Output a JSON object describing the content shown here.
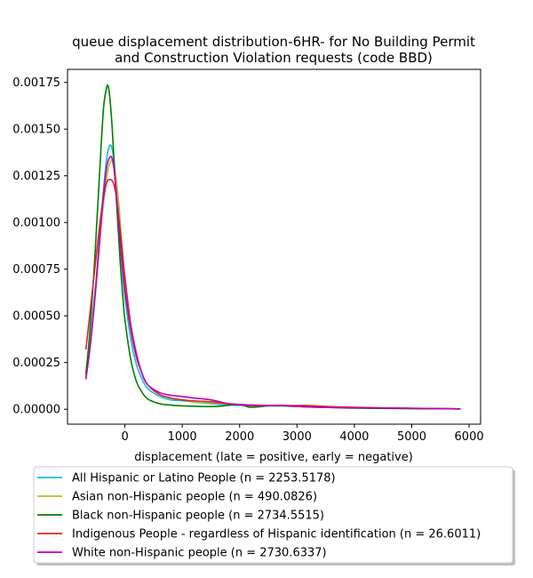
{
  "chart_data": {
    "type": "line",
    "title": "queue displacement distribution-6HR-  for No Building Permit\nand Construction Violation  requests (code BBD)",
    "xlabel": "displacement (late = positive, early = negative)",
    "ylabel": "",
    "xlim": [
      -1000,
      6200
    ],
    "ylim": [
      -8e-05,
      0.00182
    ],
    "xticks": [
      0,
      1000,
      2000,
      3000,
      4000,
      5000,
      6000
    ],
    "xtick_labels": [
      "0",
      "1000",
      "2000",
      "3000",
      "4000",
      "5000",
      "6000"
    ],
    "yticks": [
      0,
      0.00025,
      0.0005,
      0.00075,
      0.001,
      0.00125,
      0.0015,
      0.00175
    ],
    "ytick_labels": [
      "0.00000",
      "0.00025",
      "0.00050",
      "0.00075",
      "0.00100",
      "0.00125",
      "0.00150",
      "0.00175"
    ],
    "grid": false,
    "legend_position": "bottom-outside",
    "series": [
      {
        "name": "All Hispanic or Latino People (n = 2253.5178)",
        "color": "#17becf",
        "x": [
          -680,
          -600,
          -500,
          -400,
          -330,
          -270,
          -220,
          -180,
          -130,
          -60,
          0,
          100,
          200,
          300,
          400,
          600,
          800,
          1000,
          1500,
          2000,
          2500,
          3000,
          3500,
          4000,
          5000,
          5850
        ],
        "y": [
          0.00018,
          0.00038,
          0.0007,
          0.00108,
          0.00131,
          0.00141,
          0.00139,
          0.0013,
          0.0011,
          0.0008,
          0.0006,
          0.00038,
          0.00024,
          0.00016,
          0.00011,
          7e-05,
          5e-05,
          4.5e-05,
          3e-05,
          2e-05,
          1.8e-05,
          1.5e-05,
          1e-05,
          8e-06,
          4e-06,
          2e-06
        ]
      },
      {
        "name": "Asian non-Hispanic people (n = 490.0826)",
        "color": "#bcbd22",
        "x": [
          -680,
          -600,
          -500,
          -400,
          -300,
          -240,
          -200,
          -150,
          -100,
          -50,
          0,
          100,
          200,
          300,
          400,
          600,
          800,
          1000,
          1200,
          1500,
          2000,
          2500,
          3000,
          3500,
          4000,
          5000,
          5850
        ],
        "y": [
          0.00017,
          0.00035,
          0.00066,
          0.00102,
          0.00127,
          0.00133,
          0.00132,
          0.00123,
          0.00108,
          0.00088,
          0.0007,
          0.00045,
          0.00029,
          0.00019,
          0.00013,
          8e-05,
          6e-05,
          5e-05,
          4e-05,
          3.5e-05,
          2.5e-05,
          2e-05,
          1.5e-05,
          1e-05,
          8e-06,
          4e-06,
          2e-06
        ]
      },
      {
        "name": "Black non-Hispanic people (n = 2734.5515)",
        "color": "#008000",
        "x": [
          -680,
          -620,
          -550,
          -480,
          -420,
          -370,
          -320,
          -290,
          -260,
          -220,
          -180,
          -130,
          -80,
          -30,
          0,
          100,
          200,
          300,
          400,
          600,
          800,
          1000,
          1300,
          1600,
          2000,
          2200,
          2600,
          3000,
          3500,
          4000,
          5000,
          5850
        ],
        "y": [
          0.00019,
          0.00038,
          0.00068,
          0.00105,
          0.00138,
          0.00162,
          0.00172,
          0.00173,
          0.00166,
          0.0015,
          0.00128,
          0.00103,
          0.00078,
          0.00058,
          0.00048,
          0.00027,
          0.00015,
          9e-05,
          5.5e-05,
          3e-05,
          2.2e-05,
          1.8e-05,
          1.5e-05,
          1.5e-05,
          2.5e-05,
          1e-05,
          2e-05,
          1.5e-05,
          1e-05,
          6e-06,
          3e-06,
          2e-06
        ]
      },
      {
        "name": "Indigenous People - regardless of Hispanic identification (n = 26.6011)",
        "color": "#d62728",
        "x": [
          -680,
          -600,
          -500,
          -400,
          -320,
          -250,
          -200,
          -150,
          -100,
          -50,
          0,
          100,
          200,
          300,
          400,
          600,
          800,
          1000,
          1200,
          1500,
          1800,
          2000,
          2500,
          3000,
          3200,
          3500,
          4000,
          5000,
          5850
        ],
        "y": [
          0.00032,
          0.00054,
          0.00082,
          0.00108,
          0.00121,
          0.00123,
          0.00121,
          0.00114,
          0.00101,
          0.00086,
          0.00071,
          0.00046,
          0.0003,
          0.00019,
          0.00013,
          8e-05,
          6e-05,
          5e-05,
          4.5e-05,
          4e-05,
          3e-05,
          2.5e-05,
          2e-05,
          2e-05,
          2e-05,
          1.5e-05,
          1e-05,
          5e-06,
          2e-06
        ]
      },
      {
        "name": "White non-Hispanic people (n = 2730.6337)",
        "color": "#bf00bf",
        "x": [
          -680,
          -600,
          -500,
          -400,
          -320,
          -260,
          -220,
          -180,
          -130,
          -60,
          0,
          100,
          200,
          300,
          400,
          600,
          800,
          1000,
          1200,
          1500,
          1800,
          2000,
          2300,
          2600,
          2800,
          3000,
          3200,
          3500,
          4000,
          4200,
          5000,
          5850
        ],
        "y": [
          0.00016,
          0.00035,
          0.00068,
          0.00106,
          0.00129,
          0.00135,
          0.00134,
          0.00126,
          0.00108,
          0.00082,
          0.00064,
          0.00043,
          0.00028,
          0.00019,
          0.00013,
          9e-05,
          7.5e-05,
          6.8e-05,
          6e-05,
          5e-05,
          3e-05,
          2.5e-05,
          1.8e-05,
          2e-05,
          2e-05,
          1.5e-05,
          1.2e-05,
          1e-05,
          8e-06,
          8e-06,
          5e-06,
          2e-06
        ]
      }
    ]
  }
}
